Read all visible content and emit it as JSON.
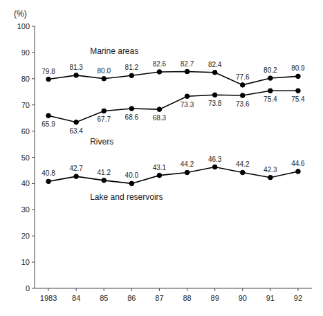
{
  "chart_data": {
    "type": "line",
    "y_label": "(%)",
    "categories": [
      "1983",
      "84",
      "85",
      "86",
      "87",
      "88",
      "89",
      "90",
      "91",
      "92"
    ],
    "series": [
      {
        "name": "Marine areas",
        "color": "#000000",
        "marker": "circle",
        "values": [
          79.8,
          81.3,
          80.0,
          81.2,
          82.6,
          82.7,
          82.4,
          77.6,
          80.2,
          80.9
        ],
        "value_labels": [
          "79.8",
          "81.3",
          "80.0",
          "81.2",
          "82.6",
          "82.7",
          "82.4",
          "77.6",
          "80.2",
          "80.9"
        ]
      },
      {
        "name": "Rivers",
        "color": "#000000",
        "marker": "circle",
        "values": [
          65.9,
          63.4,
          67.7,
          68.6,
          68.3,
          73.3,
          73.8,
          73.6,
          75.4,
          75.4
        ],
        "value_labels": [
          "65.9",
          "63.4",
          "67.7",
          "68.6",
          "68.3",
          "73.3",
          "73.8",
          "73.6",
          "75.4",
          "75.4"
        ]
      },
      {
        "name": "Lake and reservoirs",
        "color": "#000000",
        "marker": "circle",
        "values": [
          40.8,
          42.7,
          41.2,
          40.0,
          43.1,
          44.2,
          46.3,
          44.2,
          42.3,
          44.6
        ],
        "value_labels": [
          "40.8",
          "42.7",
          "41.2",
          "40.0",
          "43.1",
          "44.2",
          "46.3",
          "44.2",
          "42.3",
          "44.6"
        ]
      }
    ],
    "ylim": [
      0,
      100
    ],
    "yticks": [
      0,
      10,
      20,
      30,
      40,
      50,
      60,
      70,
      80,
      90,
      100
    ],
    "grid": false,
    "data_labels": true
  }
}
